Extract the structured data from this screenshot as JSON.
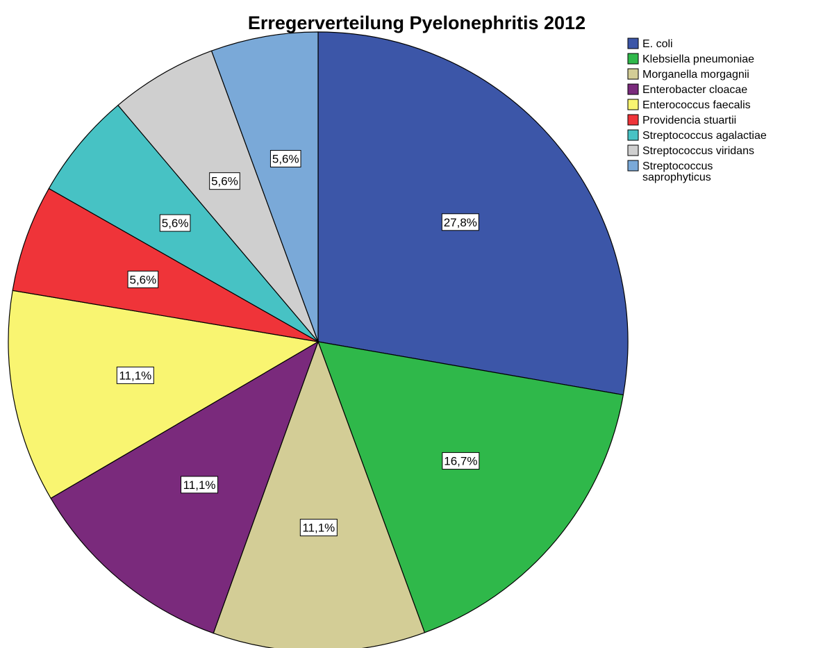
{
  "chart_data": {
    "type": "pie",
    "title": "Erregerverteilung Pyelonephritis 2012",
    "start": "12 o'clock",
    "direction": "clockwise",
    "slices": [
      {
        "label": "E. coli",
        "value": 27.8,
        "display": "27,8%",
        "color": "#3c56a8"
      },
      {
        "label": "Klebsiella pneumoniae",
        "value": 16.7,
        "display": "16,7%",
        "color": "#2fb84a"
      },
      {
        "label": "Morganella morgagnii",
        "value": 11.1,
        "display": "11,1%",
        "color": "#d3cd96"
      },
      {
        "label": "Enterobacter cloacae",
        "value": 11.1,
        "display": "11,1%",
        "color": "#7a2a7c"
      },
      {
        "label": "Enterococcus faecalis",
        "value": 11.1,
        "display": "11,1%",
        "color": "#f9f571"
      },
      {
        "label": "Providencia stuartii",
        "value": 5.6,
        "display": "5,6%",
        "color": "#ef3439"
      },
      {
        "label": "Streptococcus agalactiae",
        "value": 5.6,
        "display": "5,6%",
        "color": "#47c2c4"
      },
      {
        "label": "Streptococcus viridans",
        "value": 5.6,
        "display": "5,6%",
        "color": "#cfcfcf"
      },
      {
        "label": "Streptococcus saprophyticus",
        "value": 5.6,
        "display": "5,6%",
        "color": "#7aa9d8"
      }
    ],
    "legend_placement": "top-right"
  }
}
